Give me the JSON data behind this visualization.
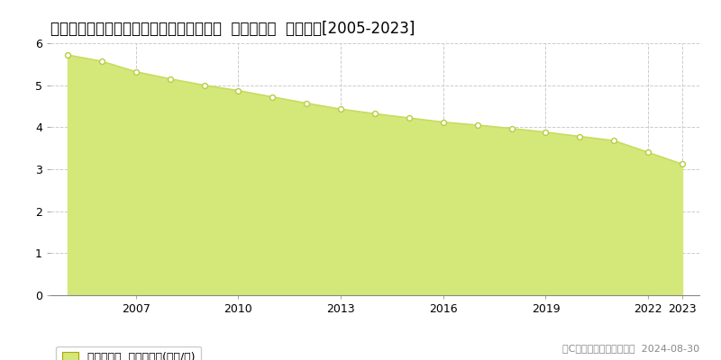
{
  "title": "石川県鹿島郡中能登町末坂壱〇８０番５外  基準地価格  地価推移[2005-2023]",
  "years": [
    2005,
    2006,
    2007,
    2008,
    2009,
    2010,
    2011,
    2012,
    2013,
    2014,
    2015,
    2016,
    2017,
    2018,
    2019,
    2020,
    2021,
    2022,
    2023
  ],
  "values": [
    5.72,
    5.57,
    5.32,
    5.15,
    5.0,
    4.87,
    4.72,
    4.57,
    4.43,
    4.32,
    4.22,
    4.12,
    4.05,
    3.97,
    3.88,
    3.78,
    3.68,
    3.4,
    3.12
  ],
  "fill_color": "#d4e87a",
  "line_color": "#c8dc60",
  "marker_edge_color": "#b8cc40",
  "background_color": "#ffffff",
  "grid_color": "#cccccc",
  "ylim": [
    0,
    6
  ],
  "yticks": [
    0,
    1,
    2,
    3,
    4,
    5,
    6
  ],
  "x_major_ticks": [
    2007,
    2010,
    2013,
    2016,
    2019,
    2022,
    2023
  ],
  "xlim_left": 2004.5,
  "xlim_right": 2023.5,
  "legend_label": "基準地価格  平均坪単価(万円/坪)",
  "copyright_text": "（C）土地価格ドットコム  2024-08-30",
  "title_fontsize": 12,
  "tick_fontsize": 9,
  "legend_fontsize": 9,
  "copyright_fontsize": 8
}
